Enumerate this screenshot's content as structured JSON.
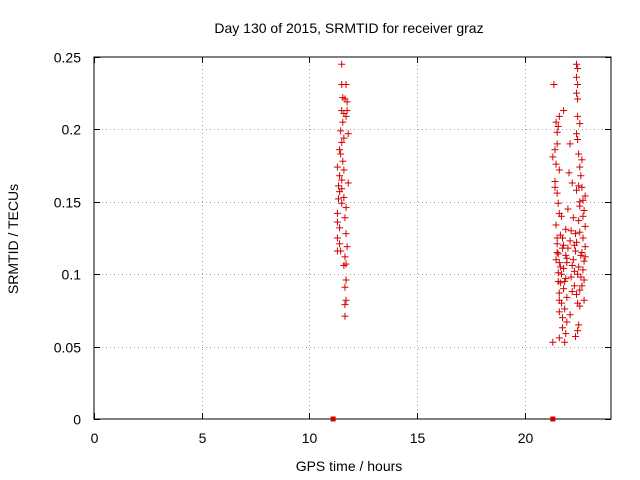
{
  "chart_data": {
    "type": "scatter",
    "title": "Day 130 of 2015, SRMTID for receiver graz",
    "xlabel": "GPS time / hours",
    "ylabel": "SRMTID / TECUs",
    "xlim": [
      0,
      24
    ],
    "ylim": [
      0,
      0.25
    ],
    "xticks": [
      0,
      5,
      10,
      15,
      20
    ],
    "xtick_labels": [
      "0",
      "5",
      "10",
      "15",
      "20"
    ],
    "yticks": [
      0,
      0.05,
      0.1,
      0.15,
      0.2,
      0.25
    ],
    "ytick_labels": [
      "0",
      "0.05",
      "0.1",
      "0.15",
      "0.2",
      "0.25"
    ],
    "grid": true,
    "marker": "plus",
    "color": "#d40000",
    "zero_markers": [
      {
        "x": 11.1,
        "y": 0
      },
      {
        "x": 21.3,
        "y": 0
      }
    ],
    "series": [
      {
        "name": "SRMTID",
        "points": [
          [
            11.5,
            0.245
          ],
          [
            11.5,
            0.231
          ],
          [
            11.7,
            0.231
          ],
          [
            11.55,
            0.222
          ],
          [
            11.65,
            0.221
          ],
          [
            11.75,
            0.219
          ],
          [
            11.5,
            0.213
          ],
          [
            11.6,
            0.211
          ],
          [
            11.7,
            0.209
          ],
          [
            11.55,
            0.205
          ],
          [
            11.45,
            0.199
          ],
          [
            11.8,
            0.197
          ],
          [
            11.6,
            0.194
          ],
          [
            11.5,
            0.191
          ],
          [
            11.45,
            0.183
          ],
          [
            11.55,
            0.178
          ],
          [
            11.3,
            0.174
          ],
          [
            11.4,
            0.168
          ],
          [
            11.5,
            0.165
          ],
          [
            11.8,
            0.163
          ],
          [
            11.35,
            0.161
          ],
          [
            11.4,
            0.157
          ],
          [
            11.6,
            0.153
          ],
          [
            11.5,
            0.149
          ],
          [
            11.7,
            0.146
          ],
          [
            11.3,
            0.142
          ],
          [
            11.65,
            0.139
          ],
          [
            11.3,
            0.136
          ],
          [
            11.4,
            0.132
          ],
          [
            11.7,
            0.128
          ],
          [
            11.3,
            0.125
          ],
          [
            11.4,
            0.121
          ],
          [
            11.75,
            0.119
          ],
          [
            11.3,
            0.116
          ],
          [
            11.45,
            0.116
          ],
          [
            11.65,
            0.112
          ],
          [
            11.7,
            0.107
          ],
          [
            11.6,
            0.106
          ],
          [
            11.7,
            0.096
          ],
          [
            11.65,
            0.091
          ],
          [
            11.7,
            0.082
          ],
          [
            11.65,
            0.079
          ],
          [
            11.65,
            0.071
          ],
          [
            11.75,
            0.213
          ],
          [
            11.4,
            0.186
          ],
          [
            11.6,
            0.172
          ],
          [
            11.5,
            0.159
          ],
          [
            11.35,
            0.152
          ],
          [
            22.4,
            0.245
          ],
          [
            22.45,
            0.242
          ],
          [
            22.4,
            0.236
          ],
          [
            22.45,
            0.231
          ],
          [
            21.35,
            0.231
          ],
          [
            22.4,
            0.225
          ],
          [
            22.45,
            0.221
          ],
          [
            21.8,
            0.213
          ],
          [
            21.6,
            0.209
          ],
          [
            22.45,
            0.209
          ],
          [
            21.45,
            0.205
          ],
          [
            22.55,
            0.204
          ],
          [
            21.55,
            0.202
          ],
          [
            21.5,
            0.198
          ],
          [
            22.4,
            0.197
          ],
          [
            22.45,
            0.193
          ],
          [
            21.5,
            0.19
          ],
          [
            22.1,
            0.19
          ],
          [
            21.4,
            0.186
          ],
          [
            22.5,
            0.183
          ],
          [
            21.3,
            0.181
          ],
          [
            22.65,
            0.179
          ],
          [
            21.45,
            0.176
          ],
          [
            22.55,
            0.174
          ],
          [
            21.6,
            0.172
          ],
          [
            22.05,
            0.17
          ],
          [
            22.6,
            0.168
          ],
          [
            21.4,
            0.164
          ],
          [
            22.2,
            0.163
          ],
          [
            22.5,
            0.161
          ],
          [
            22.65,
            0.16
          ],
          [
            22.4,
            0.158
          ],
          [
            21.5,
            0.156
          ],
          [
            22.8,
            0.154
          ],
          [
            22.7,
            0.151
          ],
          [
            21.55,
            0.149
          ],
          [
            22.55,
            0.147
          ],
          [
            22.75,
            0.144
          ],
          [
            21.6,
            0.142
          ],
          [
            22.25,
            0.139
          ],
          [
            22.5,
            0.137
          ],
          [
            21.45,
            0.134
          ],
          [
            22.8,
            0.133
          ],
          [
            21.9,
            0.131
          ],
          [
            22.55,
            0.129
          ],
          [
            21.65,
            0.127
          ],
          [
            22.7,
            0.125
          ],
          [
            22.1,
            0.123
          ],
          [
            21.5,
            0.121
          ],
          [
            22.8,
            0.119
          ],
          [
            21.75,
            0.118
          ],
          [
            22.35,
            0.116
          ],
          [
            21.55,
            0.114
          ],
          [
            22.6,
            0.113
          ],
          [
            21.95,
            0.111
          ],
          [
            22.75,
            0.109
          ],
          [
            21.6,
            0.108
          ],
          [
            22.2,
            0.106
          ],
          [
            21.8,
            0.104
          ],
          [
            22.7,
            0.103
          ],
          [
            21.55,
            0.101
          ],
          [
            22.45,
            0.1
          ],
          [
            21.9,
            0.097
          ],
          [
            22.75,
            0.096
          ],
          [
            21.65,
            0.094
          ],
          [
            22.3,
            0.092
          ],
          [
            21.8,
            0.09
          ],
          [
            22.55,
            0.089
          ],
          [
            21.6,
            0.087
          ],
          [
            22.4,
            0.086
          ],
          [
            21.95,
            0.084
          ],
          [
            22.75,
            0.082
          ],
          [
            21.7,
            0.08
          ],
          [
            22.55,
            0.078
          ],
          [
            21.85,
            0.076
          ],
          [
            21.6,
            0.074
          ],
          [
            22.1,
            0.072
          ],
          [
            21.75,
            0.07
          ],
          [
            21.95,
            0.067
          ],
          [
            22.5,
            0.065
          ],
          [
            21.75,
            0.063
          ],
          [
            22.45,
            0.061
          ],
          [
            21.9,
            0.059
          ],
          [
            22.35,
            0.057
          ],
          [
            21.6,
            0.056
          ],
          [
            21.3,
            0.053
          ],
          [
            21.85,
            0.053
          ],
          [
            22.15,
            0.13
          ],
          [
            21.7,
            0.14
          ],
          [
            22.3,
            0.12
          ],
          [
            21.45,
            0.11
          ],
          [
            22.65,
            0.115
          ],
          [
            22.0,
            0.145
          ],
          [
            21.55,
            0.095
          ],
          [
            22.5,
            0.105
          ],
          [
            21.8,
            0.12
          ],
          [
            22.2,
            0.088
          ],
          [
            21.7,
            0.1
          ],
          [
            22.35,
            0.128
          ],
          [
            21.9,
            0.113
          ],
          [
            22.6,
            0.098
          ],
          [
            21.5,
            0.125
          ],
          [
            22.45,
            0.08
          ],
          [
            21.65,
            0.105
          ],
          [
            22.25,
            0.11
          ],
          [
            21.85,
            0.095
          ],
          [
            22.7,
            0.14
          ],
          [
            22.0,
            0.118
          ],
          [
            21.4,
            0.16
          ],
          [
            22.15,
            0.098
          ],
          [
            22.8,
            0.112
          ],
          [
            21.6,
            0.082
          ],
          [
            22.55,
            0.15
          ],
          [
            21.75,
            0.125
          ],
          [
            22.3,
            0.102
          ],
          [
            21.95,
            0.108
          ],
          [
            22.65,
            0.092
          ],
          [
            21.5,
            0.115
          ],
          [
            22.4,
            0.122
          ]
        ]
      }
    ]
  }
}
